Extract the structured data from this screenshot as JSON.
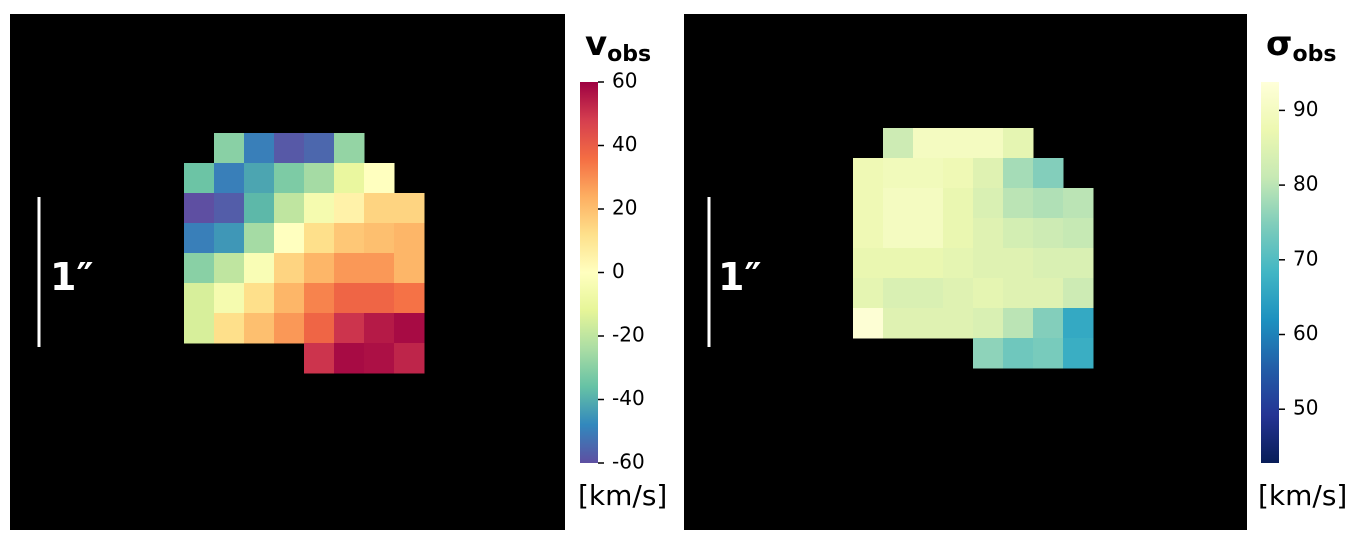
{
  "chart_data": [
    {
      "type": "heatmap",
      "title": "v",
      "title_sub": "obs",
      "units": "[km/s]",
      "annotation": "1″",
      "colormap": [
        "#5e4fa2",
        "#3288bd",
        "#66c2a5",
        "#abdda4",
        "#e6f598",
        "#ffffbf",
        "#fee08b",
        "#fdae61",
        "#f46d43",
        "#d53e4f",
        "#9e0142"
      ],
      "zlim": [
        -60,
        60
      ],
      "zticks": [
        -60,
        -40,
        -20,
        0,
        20,
        40,
        60
      ],
      "z": [
        [
          null,
          -30,
          -50,
          -58,
          -55,
          -28,
          null,
          null
        ],
        [
          -35,
          -50,
          -42,
          -32,
          -25,
          -10,
          0,
          null
        ],
        [
          -60,
          -57,
          -38,
          -20,
          -5,
          5,
          15,
          15
        ],
        [
          -50,
          -45,
          -25,
          0,
          12,
          18,
          20,
          22
        ],
        [
          -30,
          -20,
          -3,
          15,
          22,
          28,
          28,
          22
        ],
        [
          -15,
          -5,
          12,
          22,
          32,
          38,
          38,
          35
        ],
        [
          -15,
          12,
          20,
          28,
          38,
          50,
          55,
          58
        ],
        [
          null,
          null,
          null,
          null,
          50,
          58,
          57,
          53
        ]
      ]
    },
    {
      "type": "heatmap",
      "title": "σ",
      "title_sub": "obs",
      "units": "[km/s]",
      "annotation": "1″",
      "colormap": [
        "#081d58",
        "#253494",
        "#225ea8",
        "#1d91c0",
        "#41b6c4",
        "#7fcdbb",
        "#c7e9b4",
        "#edf8b1",
        "#ffffd9"
      ],
      "zlim": [
        42.8,
        93.8
      ],
      "zticks": [
        50,
        60,
        70,
        80,
        90
      ],
      "z": [
        [
          null,
          82,
          90,
          90,
          90,
          86,
          null,
          null
        ],
        [
          88,
          89,
          89,
          88,
          85,
          78,
          75,
          null
        ],
        [
          88,
          90,
          90,
          87,
          84,
          80,
          79,
          80
        ],
        [
          88,
          90,
          90,
          87,
          85,
          83,
          82,
          81
        ],
        [
          87,
          87,
          87,
          86,
          85,
          85,
          84,
          84
        ],
        [
          86,
          84,
          84,
          85,
          86,
          85,
          85,
          82
        ],
        [
          93,
          85,
          85,
          85,
          84,
          80,
          75,
          66
        ],
        [
          null,
          null,
          null,
          null,
          76,
          73,
          74,
          67
        ]
      ]
    }
  ]
}
